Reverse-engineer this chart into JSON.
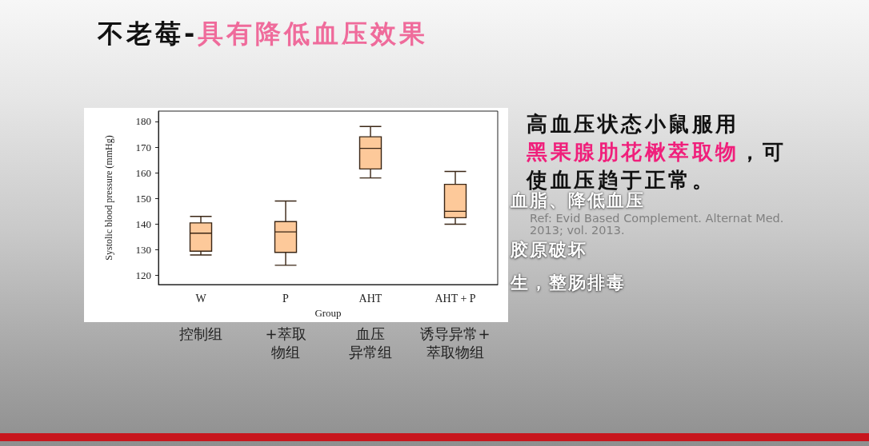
{
  "chart_data": {
    "type": "box",
    "title": "不老莓-具有降低血压效果",
    "xlabel": "Group",
    "ylabel": "Systolic blood pressure (mmHg)",
    "categories": [
      "W",
      "P",
      "AHT",
      "AHT + P"
    ],
    "boxes": [
      {
        "low": 128,
        "q1": 129.5,
        "median": 136.5,
        "q3": 140.5,
        "high": 143
      },
      {
        "low": 124,
        "q1": 129,
        "median": 137,
        "q3": 141,
        "high": 149
      },
      {
        "low": 158,
        "q1": 161.5,
        "median": 169.5,
        "q3": 174,
        "high": 178
      },
      {
        "low": 140,
        "q1": 142.5,
        "median": 145,
        "q3": 155.5,
        "high": 160.5
      }
    ],
    "color": "#fdc99a",
    "ylim": [
      116.5,
      184
    ],
    "yticks": [
      120,
      130,
      140,
      150,
      160,
      170,
      180
    ],
    "grid": false,
    "annotations": [
      "高血压状态小鼠服用",
      "黑果腺肋花楸萃取物",
      "，可",
      "使血压趋于正常。",
      "Ref: Evid Based Complement. Alternat Med. 2013; vol. 2013.",
      "血脂、降低血压",
      "胶原破坏",
      "生，整肠排毒",
      "控制组",
      "+萃取物组",
      "血压异常组",
      "诱导异常+萃取物组"
    ]
  }
}
